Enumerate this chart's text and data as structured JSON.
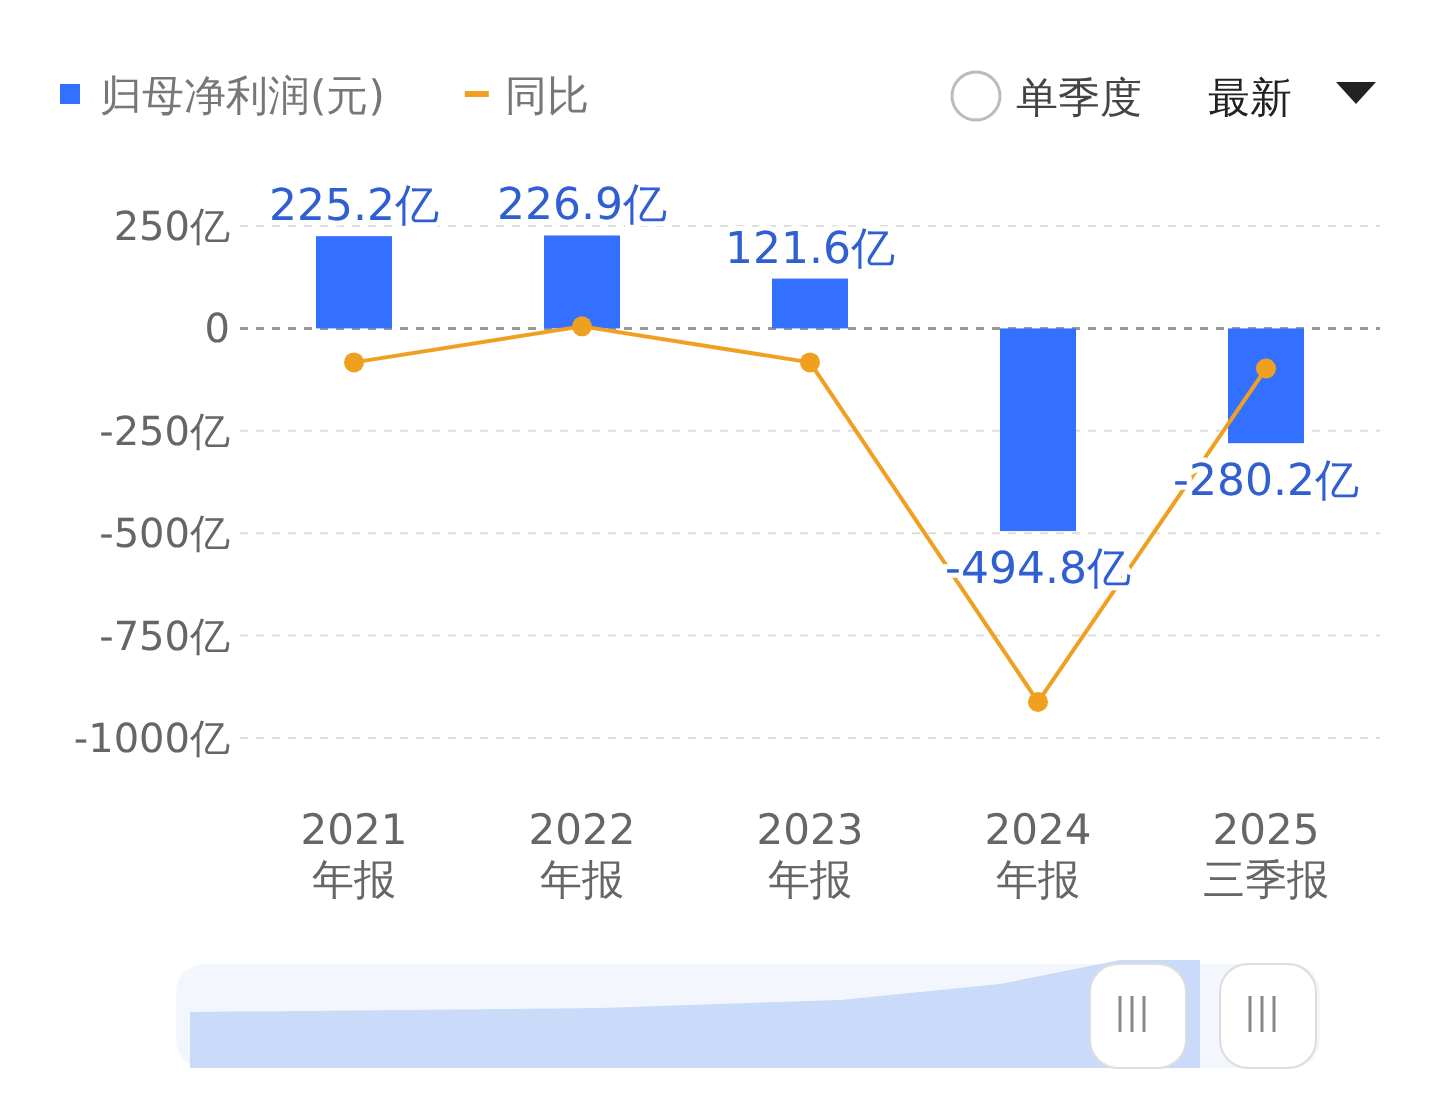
{
  "chart_data": {
    "type": "bar",
    "categories": [
      "2021\n年报",
      "2022\n年报",
      "2023\n年报",
      "2024\n年报",
      "2025\n三季报"
    ],
    "series": [
      {
        "name": "归母净利润(元)",
        "color": "#3370ff",
        "values": [
          225.2,
          226.9,
          121.6,
          -494.8,
          -280.2
        ],
        "value_labels": [
          "225.2亿",
          "226.9亿",
          "121.6亿",
          "-494.8亿",
          "-280.2亿"
        ]
      },
      {
        "name": "同比",
        "type": "line",
        "color": "#f0a020",
        "marker": "circle",
        "values": [
          -83,
          5,
          -83,
          -912,
          -98
        ]
      }
    ],
    "ylim": [
      -1000,
      250
    ],
    "yticks": [
      {
        "value": 250,
        "label": "250亿"
      },
      0,
      {
        "value": -250,
        "label": "-250亿"
      },
      {
        "value": -500,
        "label": "-500亿"
      },
      {
        "value": -750,
        "label": "-750亿"
      },
      {
        "value": -1000,
        "label": "-1000亿"
      }
    ],
    "grid": "y",
    "legend": "top left",
    "ref_lines": [
      {
        "axis": "y",
        "value": 0,
        "color": "#999999",
        "line_style": "dashed"
      }
    ],
    "annotations": [
      "单季度",
      "最新"
    ]
  }
}
